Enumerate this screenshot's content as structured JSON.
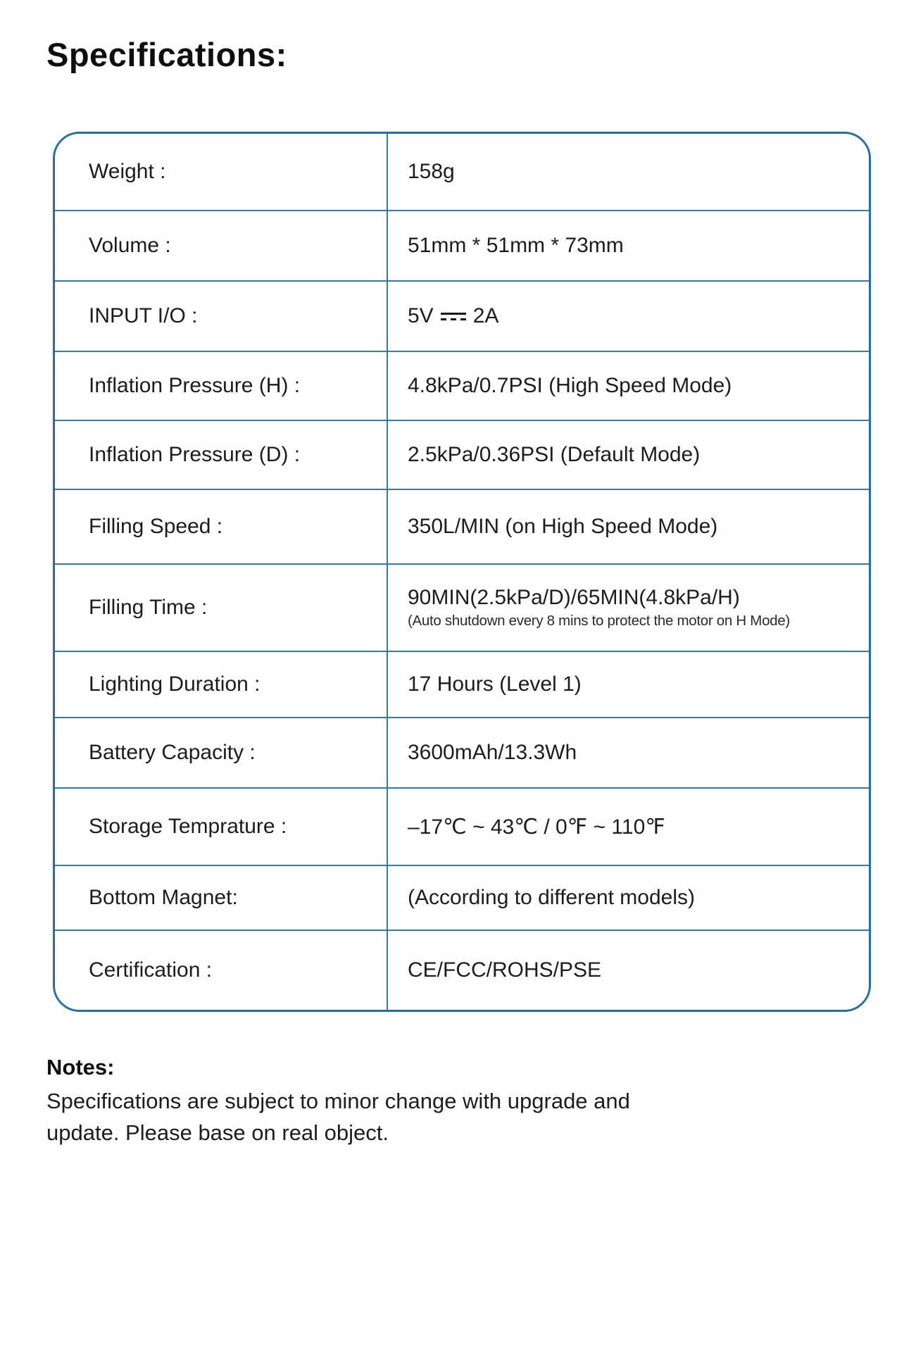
{
  "page": {
    "title": "Specifications:"
  },
  "colors": {
    "table_border": "#2b6f9f",
    "row_divider": "#3577a6",
    "text": "#1c1c1c"
  },
  "spec_table": {
    "rows": [
      {
        "label": "Weight :",
        "value": "158g"
      },
      {
        "label": "Volume :",
        "value": "51mm * 51mm * 73mm"
      },
      {
        "label": "INPUT I/O :",
        "value_parts": [
          "5V",
          "2A"
        ],
        "value_symbol": "dc-symbol"
      },
      {
        "label": "Inflation Pressure (H) :",
        "value": "4.8kPa/0.7PSI (High Speed Mode)"
      },
      {
        "label": "Inflation Pressure (D) :",
        "value": "2.5kPa/0.36PSI (Default Mode)"
      },
      {
        "label": "Filling Speed :",
        "value": "350L/MIN (on High Speed Mode)"
      },
      {
        "label": "Filling Time :",
        "value": "90MIN(2.5kPa/D)/65MIN(4.8kPa/H)",
        "note": "(Auto shutdown every 8 mins to protect the motor on H Mode)"
      },
      {
        "label": "Lighting Duration :",
        "value": "17 Hours (Level 1)"
      },
      {
        "label": "Battery Capacity :",
        "value": "3600mAh/13.3Wh"
      },
      {
        "label": "Storage Temprature :",
        "value": "–17℃ ~ 43℃ / 0℉ ~ 110℉"
      },
      {
        "label": "Bottom Magnet:",
        "value": "(According to different models)"
      },
      {
        "label": "Certification :",
        "value": "CE/FCC/ROHS/PSE"
      }
    ]
  },
  "notes": {
    "heading": "Notes:",
    "body": "Specifications are subject to minor change with upgrade and update. Please base on real object."
  }
}
